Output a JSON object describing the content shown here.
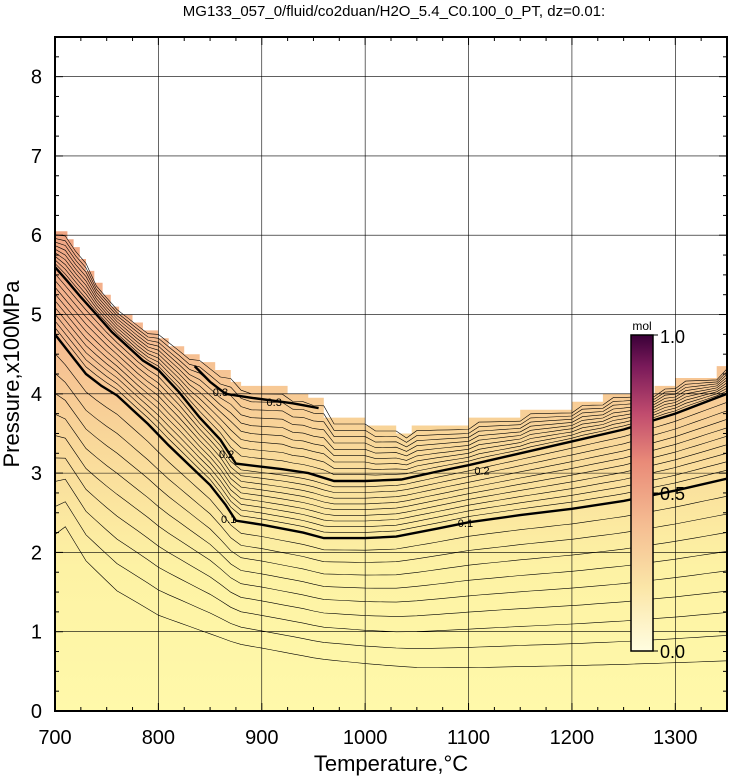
{
  "chart_data": {
    "type": "heatmap",
    "title": "MG133_057_0/fluid/co2duan/H2O_5.4_C0.100_0_PT, dz=0.01:",
    "xlabel": "Temperature,°C",
    "ylabel": "Pressure,x100MPa",
    "xlim": [
      700,
      1350
    ],
    "ylim": [
      0,
      8.5
    ],
    "x_ticks": [
      "700",
      "800",
      "900",
      "1000",
      "1100",
      "1200",
      "1300"
    ],
    "y_ticks": [
      "0",
      "1",
      "2",
      "3",
      "4",
      "5",
      "6",
      "7",
      "8"
    ],
    "grid": true,
    "colorbar": {
      "unit": "mol",
      "min_label": "0.0",
      "mid_label": "0.5",
      "max_label": "1.0",
      "range": [
        0,
        1
      ],
      "colors": [
        "#fffde0",
        "#fbe6a8",
        "#f5bd92",
        "#e98a78",
        "#c14c6e",
        "#7a1a5a",
        "#3a0038"
      ]
    },
    "boundary": [
      [
        700,
        6.05
      ],
      [
        712,
        6.05
      ],
      [
        712,
        5.95
      ],
      [
        718,
        5.95
      ],
      [
        718,
        5.85
      ],
      [
        724,
        5.85
      ],
      [
        724,
        5.7
      ],
      [
        730,
        5.7
      ],
      [
        730,
        5.55
      ],
      [
        738,
        5.55
      ],
      [
        738,
        5.4
      ],
      [
        746,
        5.4
      ],
      [
        746,
        5.25
      ],
      [
        754,
        5.25
      ],
      [
        754,
        5.1
      ],
      [
        762,
        5.1
      ],
      [
        762,
        5.0
      ],
      [
        775,
        5.0
      ],
      [
        775,
        4.9
      ],
      [
        785,
        4.9
      ],
      [
        785,
        4.8
      ],
      [
        800,
        4.8
      ],
      [
        800,
        4.7
      ],
      [
        810,
        4.7
      ],
      [
        810,
        4.6
      ],
      [
        825,
        4.6
      ],
      [
        825,
        4.5
      ],
      [
        840,
        4.5
      ],
      [
        840,
        4.4
      ],
      [
        855,
        4.4
      ],
      [
        855,
        4.3
      ],
      [
        870,
        4.3
      ],
      [
        870,
        4.15
      ],
      [
        880,
        4.15
      ],
      [
        880,
        4.1
      ],
      [
        925,
        4.1
      ],
      [
        925,
        4.0
      ],
      [
        945,
        4.0
      ],
      [
        945,
        3.95
      ],
      [
        960,
        3.95
      ],
      [
        960,
        3.7
      ],
      [
        1000,
        3.7
      ],
      [
        1000,
        3.6
      ],
      [
        1030,
        3.6
      ],
      [
        1030,
        3.5
      ],
      [
        1045,
        3.5
      ],
      [
        1045,
        3.6
      ],
      [
        1100,
        3.6
      ],
      [
        1100,
        3.7
      ],
      [
        1150,
        3.7
      ],
      [
        1150,
        3.8
      ],
      [
        1200,
        3.8
      ],
      [
        1200,
        3.9
      ],
      [
        1230,
        3.9
      ],
      [
        1230,
        4.0
      ],
      [
        1280,
        4.0
      ],
      [
        1280,
        4.1
      ],
      [
        1300,
        4.1
      ],
      [
        1300,
        4.2
      ],
      [
        1340,
        4.2
      ],
      [
        1340,
        4.35
      ],
      [
        1350,
        4.35
      ]
    ],
    "contours_major": [
      {
        "value": 0.1,
        "label": "0.1",
        "label_at": [
          [
            868,
            2.42
          ],
          [
            1097,
            2.37
          ]
        ],
        "points": [
          [
            700,
            4.75
          ],
          [
            715,
            4.5
          ],
          [
            730,
            4.25
          ],
          [
            745,
            4.1
          ],
          [
            760,
            3.98
          ],
          [
            775,
            3.8
          ],
          [
            790,
            3.62
          ],
          [
            810,
            3.35
          ],
          [
            830,
            3.1
          ],
          [
            850,
            2.85
          ],
          [
            865,
            2.6
          ],
          [
            875,
            2.4
          ],
          [
            900,
            2.35
          ],
          [
            940,
            2.25
          ],
          [
            960,
            2.18
          ],
          [
            1000,
            2.18
          ],
          [
            1030,
            2.2
          ],
          [
            1070,
            2.3
          ],
          [
            1100,
            2.38
          ],
          [
            1150,
            2.47
          ],
          [
            1200,
            2.55
          ],
          [
            1250,
            2.65
          ],
          [
            1300,
            2.78
          ],
          [
            1350,
            2.93
          ]
        ]
      },
      {
        "value": 0.2,
        "label": "0.2",
        "label_at": [
          [
            866,
            3.24
          ],
          [
            1113,
            3.03
          ]
        ],
        "points": [
          [
            700,
            5.6
          ],
          [
            712,
            5.42
          ],
          [
            725,
            5.22
          ],
          [
            740,
            5.0
          ],
          [
            755,
            4.78
          ],
          [
            770,
            4.6
          ],
          [
            785,
            4.42
          ],
          [
            800,
            4.3
          ],
          [
            820,
            4.02
          ],
          [
            840,
            3.7
          ],
          [
            860,
            3.42
          ],
          [
            875,
            3.12
          ],
          [
            920,
            3.05
          ],
          [
            945,
            3.0
          ],
          [
            970,
            2.9
          ],
          [
            1000,
            2.9
          ],
          [
            1035,
            2.92
          ],
          [
            1070,
            3.02
          ],
          [
            1100,
            3.1
          ],
          [
            1150,
            3.25
          ],
          [
            1200,
            3.4
          ],
          [
            1250,
            3.55
          ],
          [
            1300,
            3.75
          ],
          [
            1350,
            4.0
          ]
        ]
      },
      {
        "value": 0.3,
        "label": "0.3",
        "label_at": [
          [
            860,
            4.02
          ],
          [
            912,
            3.9
          ]
        ],
        "points": [
          [
            835,
            4.35
          ],
          [
            850,
            4.15
          ],
          [
            865,
            4.0
          ],
          [
            890,
            3.95
          ],
          [
            930,
            3.88
          ],
          [
            955,
            3.82
          ]
        ]
      }
    ],
    "minor_step": 0.01
  }
}
